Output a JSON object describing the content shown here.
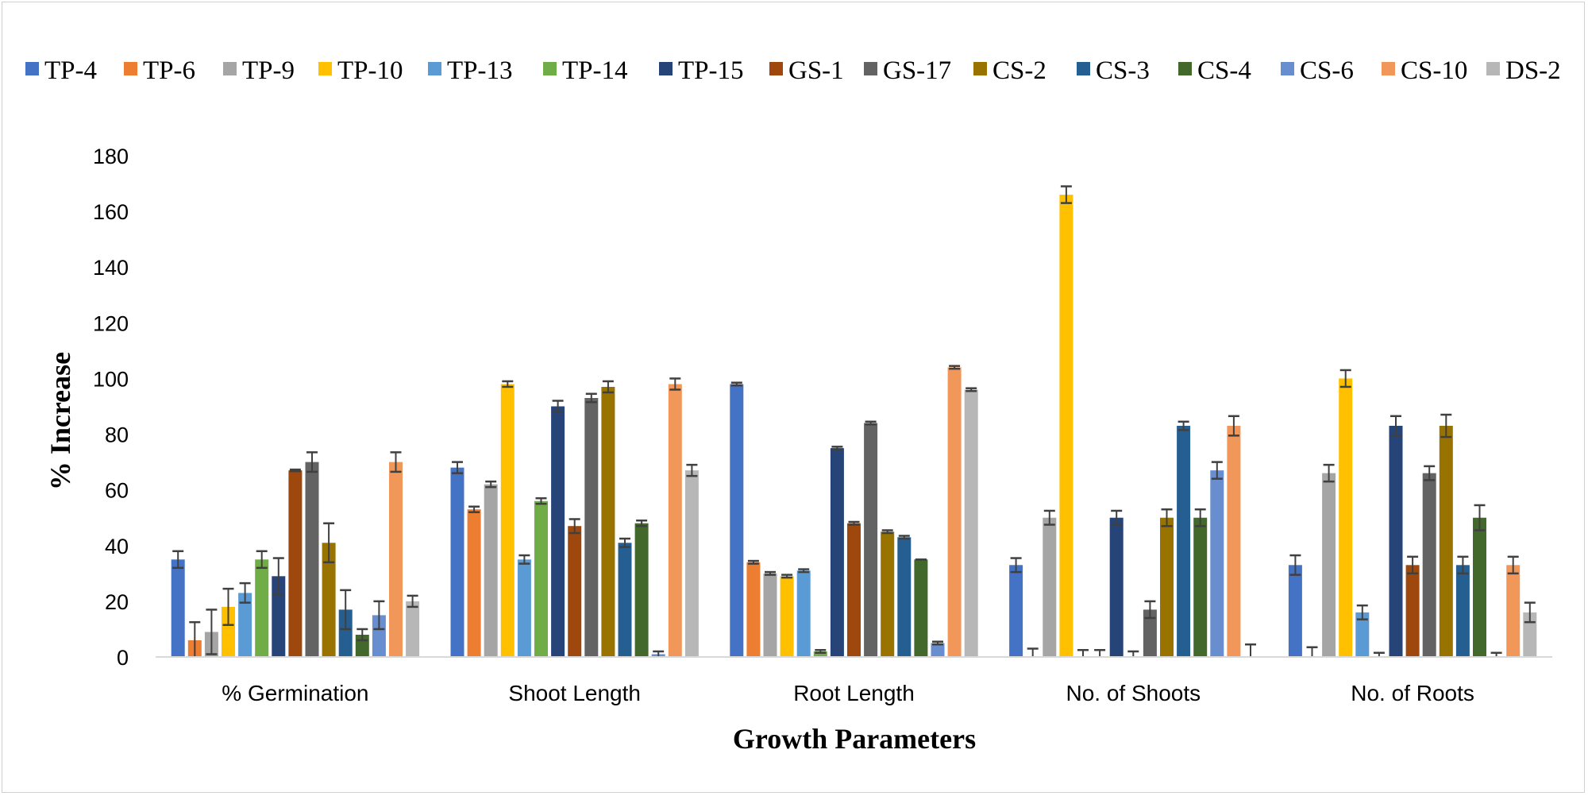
{
  "chart_data": {
    "type": "bar",
    "title": "",
    "xlabel": "Growth Parameters",
    "ylabel": "% Increase",
    "ylim": [
      0,
      180
    ],
    "yticks": [
      0,
      20,
      40,
      60,
      80,
      100,
      120,
      140,
      160,
      180
    ],
    "grid": false,
    "legend_position": "top",
    "categories": [
      "% Germination",
      "Shoot Length",
      "Root Length",
      "No. of Shoots",
      "No. of Roots"
    ],
    "series": [
      {
        "name": "TP-4",
        "color": "#4472C4",
        "values": [
          35,
          68,
          98,
          33,
          33
        ],
        "errors": [
          3,
          2,
          0.5,
          2.5,
          3.5
        ]
      },
      {
        "name": "TP-6",
        "color": "#ED7D31",
        "values": [
          6,
          53,
          34,
          0,
          0
        ],
        "errors": [
          6.5,
          1,
          0.5,
          3,
          3.5
        ]
      },
      {
        "name": "TP-9",
        "color": "#A5A5A5",
        "values": [
          9,
          62,
          30,
          50,
          66
        ],
        "errors": [
          8,
          1,
          0.5,
          2.5,
          3
        ]
      },
      {
        "name": "TP-10",
        "color": "#FFC000",
        "values": [
          18,
          98,
          29,
          166,
          100
        ],
        "errors": [
          6.5,
          1,
          0.5,
          3,
          3
        ]
      },
      {
        "name": "TP-13",
        "color": "#5B9BD5",
        "values": [
          23,
          35,
          31,
          0,
          16
        ],
        "errors": [
          3.5,
          1.5,
          0.5,
          2.5,
          2.5
        ]
      },
      {
        "name": "TP-14",
        "color": "#70AD47",
        "values": [
          35,
          56,
          2,
          0,
          0
        ],
        "errors": [
          3,
          1,
          0.5,
          2.5,
          1.5
        ]
      },
      {
        "name": "TP-15",
        "color": "#264478",
        "values": [
          29,
          90,
          75,
          50,
          83
        ],
        "errors": [
          6.5,
          2,
          0.5,
          2.5,
          3.5
        ]
      },
      {
        "name": "GS-1",
        "color": "#9E480E",
        "values": [
          67,
          47,
          48,
          0,
          33
        ],
        "errors": [
          0.3,
          2.5,
          0.5,
          2,
          3
        ]
      },
      {
        "name": "GS-17",
        "color": "#636363",
        "values": [
          70,
          93,
          84,
          17,
          66
        ],
        "errors": [
          3.5,
          1.5,
          0.5,
          3,
          2.5
        ]
      },
      {
        "name": "CS-2",
        "color": "#997300",
        "values": [
          41,
          97,
          45,
          50,
          83
        ],
        "errors": [
          7,
          2,
          0.5,
          3,
          4
        ]
      },
      {
        "name": "CS-3",
        "color": "#255E91",
        "values": [
          17,
          41,
          43,
          83,
          33
        ],
        "errors": [
          7,
          1.5,
          0.5,
          1.5,
          3
        ]
      },
      {
        "name": "CS-4",
        "color": "#43682B",
        "values": [
          8,
          48,
          35,
          50,
          50
        ],
        "errors": [
          2,
          1,
          0,
          3,
          4.5
        ]
      },
      {
        "name": "CS-6",
        "color": "#698ED0",
        "values": [
          15,
          1,
          5,
          67,
          0
        ],
        "errors": [
          5,
          1,
          0.5,
          3,
          1.5
        ]
      },
      {
        "name": "CS-10",
        "color": "#F1975A",
        "values": [
          70,
          98,
          104,
          83,
          33
        ],
        "errors": [
          3.5,
          2,
          0.5,
          3.5,
          3
        ]
      },
      {
        "name": "DS-2",
        "color": "#B7B7B7",
        "values": [
          20,
          67,
          96,
          0,
          16
        ],
        "errors": [
          2,
          2,
          0.5,
          4.5,
          3.5
        ]
      }
    ]
  }
}
